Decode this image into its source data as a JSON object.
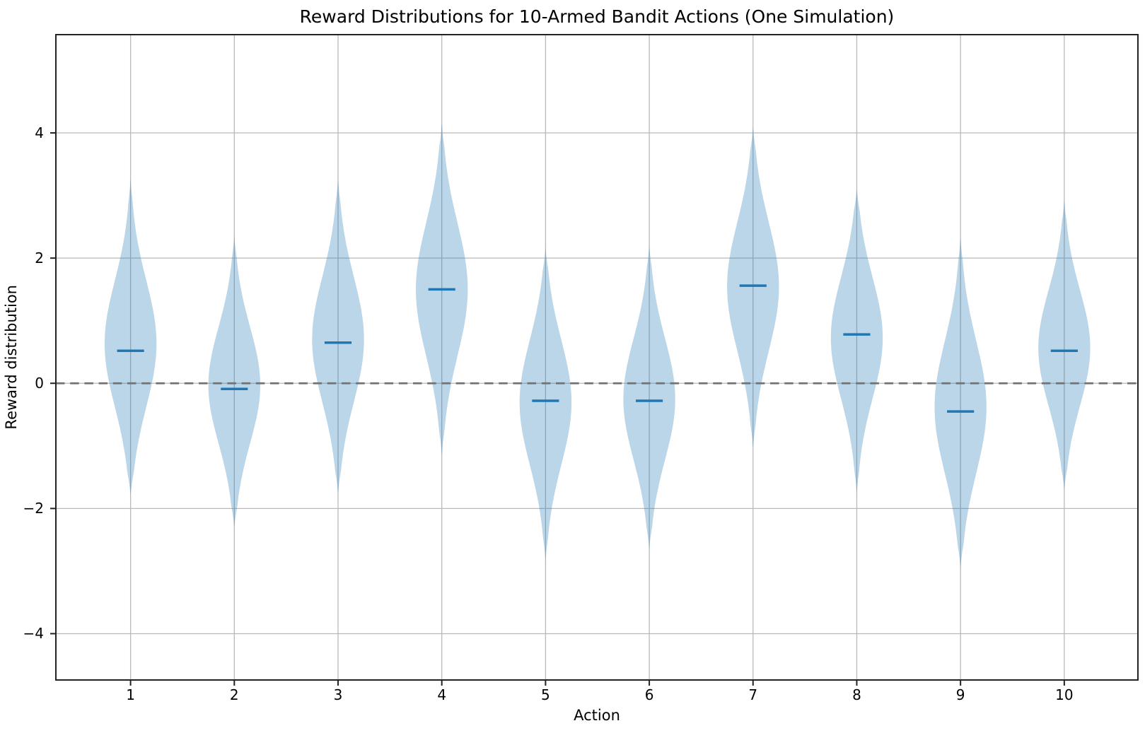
{
  "chart_data": {
    "type": "violin",
    "title": "Reward Distributions for 10-Armed Bandit Actions (One Simulation)",
    "xlabel": "Action",
    "ylabel": "Reward distribution",
    "categories": [
      1,
      2,
      3,
      4,
      5,
      6,
      7,
      8,
      9,
      10
    ],
    "x_tick_labels": [
      "1",
      "2",
      "3",
      "4",
      "5",
      "6",
      "7",
      "8",
      "9",
      "10"
    ],
    "y_ticks": [
      -4,
      -2,
      0,
      2,
      4
    ],
    "y_tick_labels": [
      "−4",
      "−2",
      "0",
      "2",
      "4"
    ],
    "xlim": [
      0.28,
      10.71
    ],
    "ylim": [
      -4.74,
      5.57
    ],
    "grid": true,
    "legend": "none",
    "zero_line": {
      "y": 0,
      "style": "dashed"
    },
    "series": [
      {
        "action": 1,
        "mean": 0.52,
        "min": -1.78,
        "max": 3.27
      },
      {
        "action": 2,
        "mean": -0.09,
        "min": -2.3,
        "max": 2.36
      },
      {
        "action": 3,
        "mean": 0.65,
        "min": -1.76,
        "max": 3.26
      },
      {
        "action": 4,
        "mean": 1.5,
        "min": -1.15,
        "max": 4.15
      },
      {
        "action": 5,
        "mean": -0.28,
        "min": -2.83,
        "max": 2.17
      },
      {
        "action": 6,
        "mean": -0.28,
        "min": -2.65,
        "max": 2.2
      },
      {
        "action": 7,
        "mean": 1.56,
        "min": -1.04,
        "max": 4.1
      },
      {
        "action": 8,
        "mean": 0.78,
        "min": -1.76,
        "max": 3.1
      },
      {
        "action": 9,
        "mean": -0.45,
        "min": -2.95,
        "max": 2.33
      },
      {
        "action": 10,
        "mean": 0.52,
        "min": -1.7,
        "max": 2.92
      }
    ],
    "violin_width": 0.5,
    "mean_bar_width": 0.26,
    "colors": {
      "violin_fill": "#1f77b4",
      "violin_fill_opacity": 0.3,
      "mean_line": "#1f77b4",
      "grid_line": "#b9b9b9",
      "zero_line": "#737373",
      "spine": "#222222",
      "text": "#000000"
    }
  }
}
